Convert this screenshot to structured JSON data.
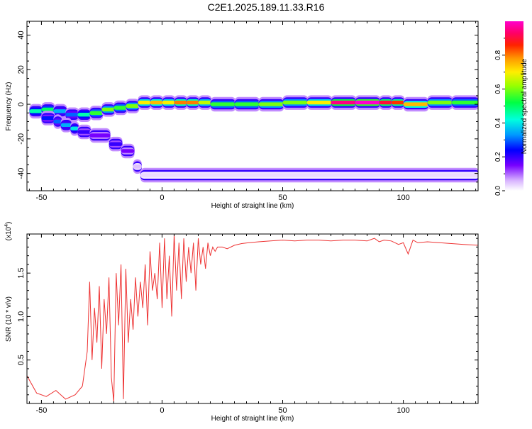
{
  "title": "C2E1.2025.189.11.33.R16",
  "chart_data": [
    {
      "type": "heatmap",
      "xlabel": "Height of straight line (km)",
      "ylabel": "Frequency (Hz)",
      "xlim": [
        -56,
        131
      ],
      "ylim": [
        -50,
        48
      ],
      "xticks": [
        -50,
        0,
        50,
        100
      ],
      "yticks": [
        -40,
        -20,
        0,
        20,
        40
      ],
      "colorbar": {
        "label": "Normalized spectral amplitude",
        "range": [
          0,
          1
        ],
        "ticks": [
          "0.0",
          "0.2",
          "0.4",
          "0.6",
          "0.8"
        ],
        "tick_values": [
          0.0,
          0.2,
          0.4,
          0.6,
          0.8
        ]
      },
      "ridge": [
        {
          "x": -55,
          "f": -4,
          "a": 0.45
        },
        {
          "x": -50,
          "f": -3,
          "a": 0.5
        },
        {
          "x": -45,
          "f": -4,
          "a": 0.35
        },
        {
          "x": -40,
          "f": -6,
          "a": 0.3
        },
        {
          "x": -35,
          "f": -6,
          "a": 0.45
        },
        {
          "x": -30,
          "f": -5,
          "a": 0.55
        },
        {
          "x": -25,
          "f": -3,
          "a": 0.6
        },
        {
          "x": -20,
          "f": -2,
          "a": 0.55
        },
        {
          "x": -15,
          "f": -1,
          "a": 0.6
        },
        {
          "x": -10,
          "f": 1,
          "a": 0.7
        },
        {
          "x": -5,
          "f": 1,
          "a": 0.75
        },
        {
          "x": 0,
          "f": 1,
          "a": 0.7
        },
        {
          "x": 5,
          "f": 1,
          "a": 0.8
        },
        {
          "x": 10,
          "f": 1,
          "a": 0.8
        },
        {
          "x": 15,
          "f": 1,
          "a": 0.65
        },
        {
          "x": 20,
          "f": 0,
          "a": 0.55
        },
        {
          "x": 30,
          "f": 0,
          "a": 0.55
        },
        {
          "x": 40,
          "f": 0,
          "a": 0.6
        },
        {
          "x": 50,
          "f": 1,
          "a": 0.6
        },
        {
          "x": 60,
          "f": 1,
          "a": 0.7
        },
        {
          "x": 70,
          "f": 1,
          "a": 0.95
        },
        {
          "x": 80,
          "f": 1,
          "a": 1.0
        },
        {
          "x": 90,
          "f": 1,
          "a": 0.9
        },
        {
          "x": 95,
          "f": 1,
          "a": 0.85
        },
        {
          "x": 100,
          "f": 0,
          "a": 0.75
        },
        {
          "x": 110,
          "f": 1,
          "a": 0.6
        },
        {
          "x": 120,
          "f": 1,
          "a": 0.55
        },
        {
          "x": 131,
          "f": 1,
          "a": 0.55
        }
      ],
      "branch": [
        {
          "x": -50,
          "f": -8,
          "a": 0.25
        },
        {
          "x": -45,
          "f": -10,
          "a": 0.3
        },
        {
          "x": -42,
          "f": -12,
          "a": 0.35
        },
        {
          "x": -38,
          "f": -14,
          "a": 0.4
        },
        {
          "x": -35,
          "f": -16,
          "a": 0.2
        },
        {
          "x": -30,
          "f": -18,
          "a": 0.15
        },
        {
          "x": -22,
          "f": -23,
          "a": 0.2
        },
        {
          "x": -17,
          "f": -27,
          "a": 0.15
        },
        {
          "x": -12,
          "f": -36,
          "a": 0.05
        },
        {
          "x": -9,
          "f": -41,
          "a": 0.03
        }
      ]
    },
    {
      "type": "line",
      "xlabel": "Height of straight line (km)",
      "ylabel": "SNR (10 * v/v)",
      "yscale_label": "(x10",
      "yscale_exp": "4",
      "yscale_close": ")",
      "xlim": [
        -56,
        131
      ],
      "ylim": [
        0,
        1.95
      ],
      "xticks": [
        -50,
        0,
        50,
        100
      ],
      "yticks": [
        0.5,
        1.0,
        1.5
      ],
      "ytick_labels": [
        "0.5",
        "1.0",
        "1.5"
      ],
      "color": "#ee3333",
      "series": [
        {
          "x": [
            -56,
            -52,
            -48,
            -44,
            -40,
            -36,
            -33,
            -31,
            -30,
            -29,
            -28,
            -27,
            -26,
            -25,
            -24,
            -23,
            -22,
            -21,
            -20,
            -19,
            -18,
            -17,
            -16,
            -15,
            -14,
            -13,
            -12,
            -11,
            -10,
            -9,
            -8,
            -7,
            -6,
            -5,
            -4,
            -3,
            -2,
            -1,
            0,
            1,
            2,
            3,
            4,
            5,
            6,
            7,
            8,
            9,
            10,
            11,
            12,
            13,
            14,
            15,
            16,
            17,
            18,
            19,
            20,
            21,
            22,
            23,
            25,
            27,
            30,
            33,
            36,
            40,
            45,
            50,
            55,
            60,
            65,
            70,
            75,
            80,
            85,
            88,
            90,
            92,
            95,
            98,
            100,
            102,
            104,
            106,
            110,
            115,
            120,
            125,
            131
          ],
          "y": [
            0.32,
            0.12,
            0.08,
            0.15,
            0.05,
            0.1,
            0.2,
            0.6,
            1.4,
            0.5,
            1.1,
            0.7,
            1.35,
            0.4,
            1.2,
            0.8,
            1.45,
            0.3,
            0.02,
            1.5,
            0.9,
            1.6,
            0.05,
            1.55,
            0.7,
            1.2,
            0.85,
            1.45,
            1.0,
            1.4,
            1.1,
            1.6,
            0.9,
            1.75,
            1.3,
            1.5,
            1.2,
            1.85,
            1.1,
            1.9,
            1.2,
            1.7,
            1.0,
            1.95,
            1.3,
            1.85,
            1.2,
            1.9,
            1.4,
            1.8,
            1.5,
            1.85,
            1.3,
            1.9,
            1.6,
            1.8,
            1.55,
            1.85,
            1.7,
            1.8,
            1.75,
            1.8,
            1.8,
            1.78,
            1.82,
            1.84,
            1.85,
            1.86,
            1.87,
            1.88,
            1.87,
            1.88,
            1.88,
            1.87,
            1.88,
            1.88,
            1.87,
            1.9,
            1.86,
            1.88,
            1.87,
            1.83,
            1.85,
            1.72,
            1.88,
            1.85,
            1.86,
            1.85,
            1.84,
            1.83,
            1.82
          ]
        }
      ]
    }
  ]
}
